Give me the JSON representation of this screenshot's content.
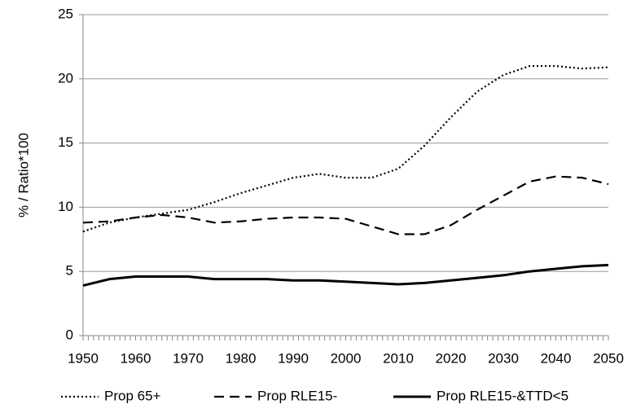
{
  "chart_data": {
    "type": "line",
    "y_label": "% / Ratio*100",
    "x": [
      1950,
      1955,
      1960,
      1965,
      1970,
      1975,
      1980,
      1985,
      1990,
      1995,
      2000,
      2005,
      2010,
      2015,
      2020,
      2025,
      2030,
      2035,
      2040,
      2045,
      2050
    ],
    "series": [
      {
        "name": "Prop 65+",
        "color": "#000000",
        "style": "dotted",
        "values": [
          8.1,
          8.8,
          9.2,
          9.5,
          9.8,
          10.4,
          11.1,
          11.7,
          12.3,
          12.6,
          12.3,
          12.3,
          13.0,
          14.8,
          17.0,
          19.0,
          20.3,
          21.0,
          21.0,
          20.8,
          20.9
        ]
      },
      {
        "name": "Prop RLE15-",
        "color": "#000000",
        "style": "dashed",
        "values": [
          8.8,
          8.9,
          9.2,
          9.4,
          9.2,
          8.8,
          8.9,
          9.1,
          9.2,
          9.2,
          9.1,
          8.5,
          7.9,
          7.9,
          8.6,
          9.8,
          10.9,
          12.0,
          12.4,
          12.3,
          11.8
        ]
      },
      {
        "name": "Prop RLE15-&TTD<5",
        "color": "#000000",
        "style": "solid",
        "values": [
          3.9,
          4.4,
          4.6,
          4.6,
          4.6,
          4.4,
          4.4,
          4.4,
          4.3,
          4.3,
          4.2,
          4.1,
          4.0,
          4.1,
          4.3,
          4.5,
          4.7,
          5.0,
          5.2,
          5.4,
          5.5
        ]
      }
    ],
    "xlim": [
      1950,
      2050
    ],
    "xticks": [
      1950,
      1960,
      1970,
      1980,
      1990,
      2000,
      2010,
      2020,
      2030,
      2040,
      2050
    ],
    "ylim": [
      0,
      25
    ],
    "yticks": [
      0,
      5,
      10,
      15,
      20,
      25
    ],
    "grid": true,
    "legend": "bottom"
  }
}
